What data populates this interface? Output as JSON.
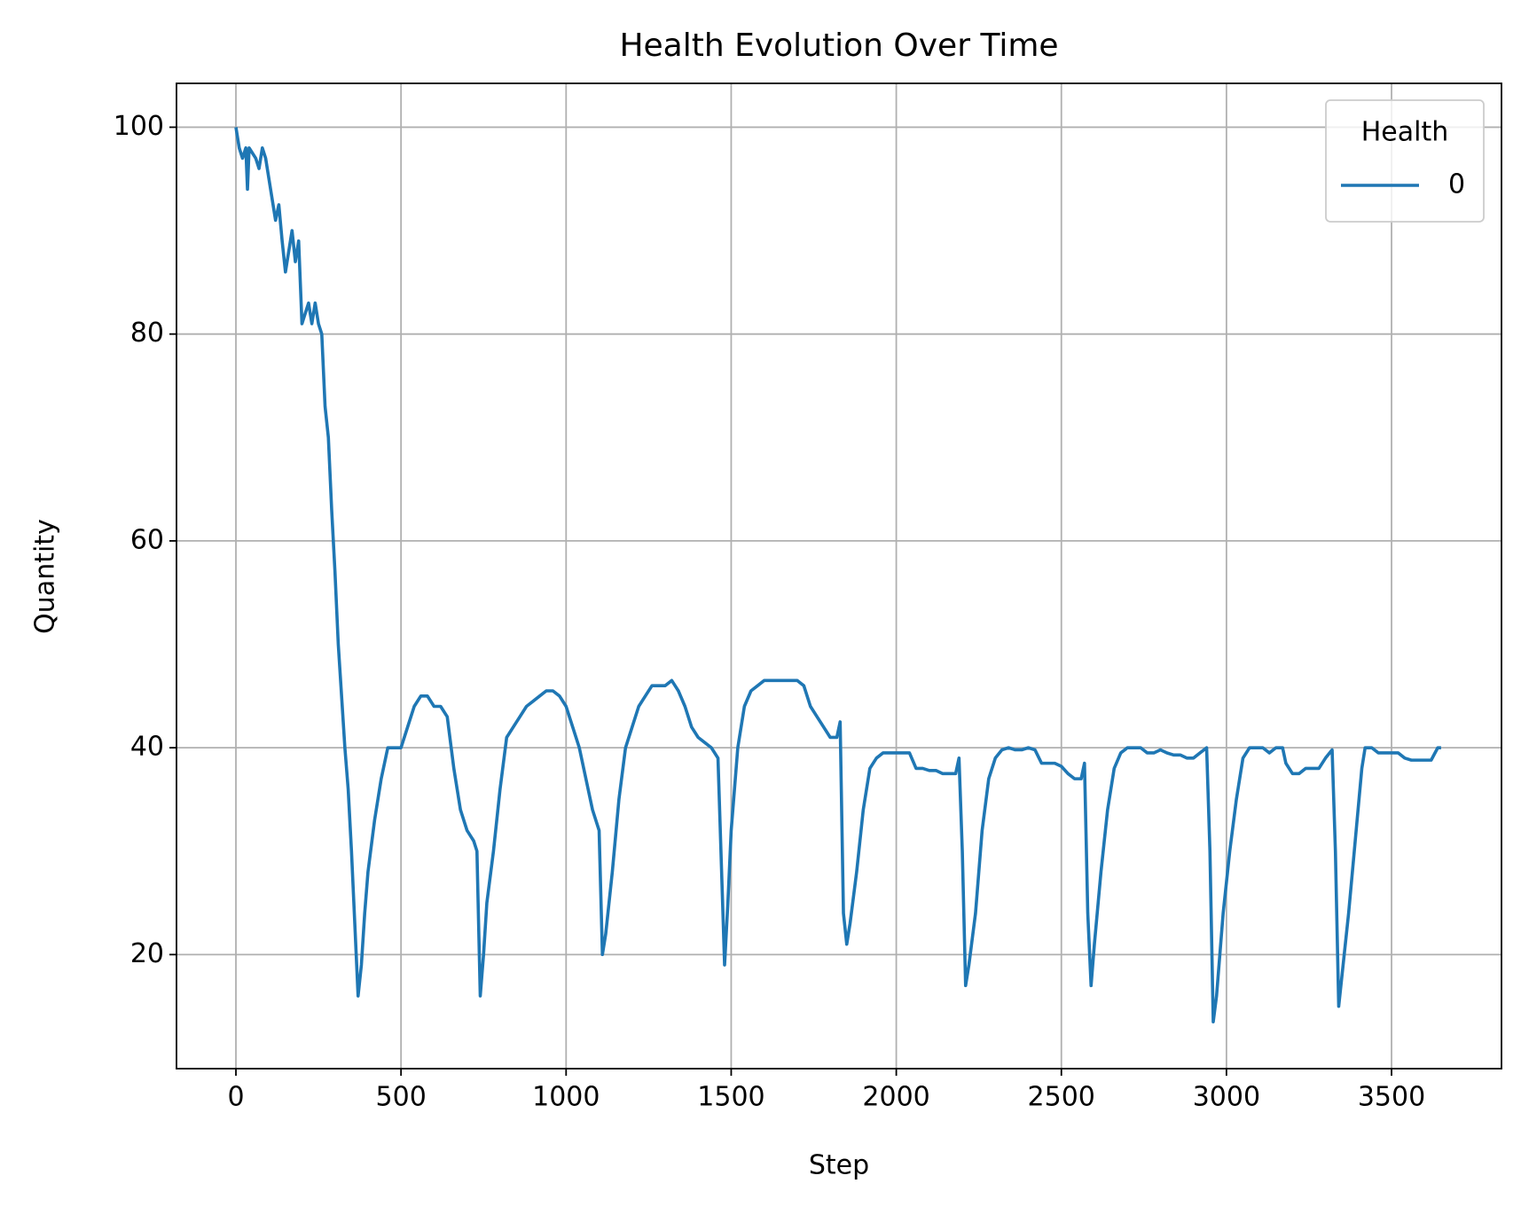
{
  "chart_data": {
    "type": "line",
    "title": "Health Evolution Over Time",
    "xlabel": "Step",
    "ylabel": "Quantity",
    "legend_title": "Health",
    "legend_loc": "upper right",
    "grid": true,
    "xlim": [
      -180,
      3833
    ],
    "ylim": [
      8.97,
      104.24
    ],
    "xticks": [
      0,
      500,
      1000,
      1500,
      2000,
      2500,
      3000,
      3500
    ],
    "yticks": [
      20,
      40,
      60,
      80,
      100
    ],
    "x": [
      0,
      10,
      20,
      30,
      35,
      40,
      60,
      70,
      80,
      90,
      100,
      110,
      120,
      130,
      140,
      150,
      160,
      170,
      180,
      190,
      200,
      210,
      220,
      230,
      240,
      250,
      260,
      270,
      280,
      290,
      300,
      310,
      320,
      330,
      340,
      350,
      360,
      370,
      380,
      390,
      400,
      420,
      440,
      460,
      480,
      500,
      520,
      540,
      560,
      580,
      600,
      620,
      640,
      660,
      680,
      700,
      720,
      730,
      740,
      750,
      760,
      780,
      800,
      820,
      840,
      860,
      880,
      900,
      920,
      940,
      960,
      980,
      1000,
      1020,
      1040,
      1060,
      1080,
      1100,
      1110,
      1120,
      1140,
      1160,
      1180,
      1200,
      1220,
      1240,
      1260,
      1280,
      1300,
      1320,
      1340,
      1360,
      1380,
      1400,
      1420,
      1440,
      1460,
      1470,
      1480,
      1490,
      1500,
      1520,
      1540,
      1560,
      1580,
      1600,
      1620,
      1640,
      1660,
      1680,
      1700,
      1720,
      1740,
      1760,
      1780,
      1800,
      1820,
      1830,
      1840,
      1850,
      1860,
      1880,
      1900,
      1920,
      1940,
      1960,
      1980,
      2000,
      2020,
      2040,
      2060,
      2080,
      2100,
      2120,
      2140,
      2160,
      2180,
      2190,
      2200,
      2210,
      2220,
      2240,
      2260,
      2280,
      2300,
      2320,
      2340,
      2360,
      2380,
      2400,
      2420,
      2440,
      2460,
      2480,
      2500,
      2520,
      2540,
      2560,
      2570,
      2580,
      2590,
      2600,
      2620,
      2640,
      2660,
      2680,
      2700,
      2720,
      2740,
      2760,
      2780,
      2800,
      2820,
      2840,
      2860,
      2880,
      2900,
      2920,
      2940,
      2950,
      2960,
      2970,
      2990,
      3010,
      3030,
      3050,
      3070,
      3090,
      3110,
      3130,
      3150,
      3170,
      3180,
      3200,
      3220,
      3240,
      3260,
      3280,
      3300,
      3320,
      3330,
      3340,
      3350,
      3370,
      3390,
      3410,
      3420,
      3440,
      3460,
      3480,
      3500,
      3520,
      3540,
      3560,
      3580,
      3600,
      3620,
      3640,
      3650
    ],
    "series": [
      {
        "name": "0",
        "color": "#1f77b4",
        "values": [
          100,
          98,
          97,
          98,
          94,
          98,
          97,
          96,
          98,
          97,
          95,
          93,
          91,
          92.5,
          89,
          86,
          88,
          90,
          87,
          89,
          81,
          82,
          83,
          81,
          83,
          81,
          80,
          73,
          70,
          63,
          57,
          50,
          45,
          40,
          36,
          30,
          23,
          16,
          19,
          24,
          28,
          33,
          37,
          40,
          40,
          40,
          42,
          44,
          45,
          45,
          44,
          44,
          43,
          38,
          34,
          32,
          31,
          30,
          16,
          20,
          25,
          30,
          36,
          41,
          42,
          43,
          44,
          44.5,
          45,
          45.5,
          45.5,
          45,
          44,
          42,
          40,
          37,
          34,
          32,
          20,
          22,
          28,
          35,
          40,
          42,
          44,
          45,
          46,
          46,
          46,
          46.5,
          45.5,
          44,
          42,
          41,
          40.5,
          40,
          39,
          29,
          19,
          25,
          32,
          40,
          44,
          45.5,
          46,
          46.5,
          46.5,
          46.5,
          46.5,
          46.5,
          46.5,
          46,
          44,
          43,
          42,
          41,
          41,
          42.5,
          24,
          21,
          23,
          28,
          34,
          38,
          39,
          39.5,
          39.5,
          39.5,
          39.5,
          39.5,
          38,
          38,
          37.8,
          37.8,
          37.5,
          37.5,
          37.5,
          39,
          30,
          17,
          19,
          24,
          32,
          37,
          39,
          39.8,
          40,
          39.8,
          39.8,
          40,
          39.8,
          38.5,
          38.5,
          38.5,
          38.2,
          37.5,
          37,
          37,
          38.5,
          24,
          17,
          21,
          28,
          34,
          38,
          39.5,
          40,
          40,
          40,
          39.5,
          39.5,
          39.8,
          39.5,
          39.3,
          39.3,
          39,
          39,
          39.5,
          40,
          30,
          13.5,
          16,
          24,
          30,
          35,
          39,
          40,
          40,
          40,
          39.5,
          40,
          40,
          38.5,
          37.5,
          37.5,
          38,
          38,
          38,
          39,
          39.8,
          30,
          15,
          18,
          24,
          31,
          38,
          40,
          40,
          39.5,
          39.5,
          39.5,
          39.5,
          39,
          38.8,
          38.8,
          38.8,
          38.8,
          40,
          40
        ]
      }
    ]
  }
}
